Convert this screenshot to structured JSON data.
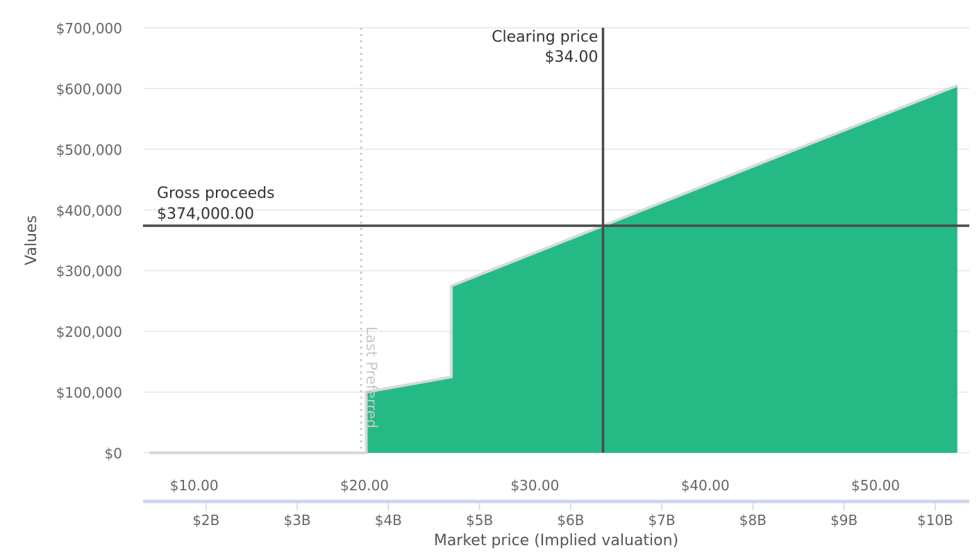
{
  "chart_data": {
    "type": "area",
    "title": "",
    "ylabel": "Values",
    "xlabel": "Market price (Implied valuation)",
    "ylim": [
      0,
      700000
    ],
    "yticks": [
      {
        "value": 0,
        "label": "$0"
      },
      {
        "value": 100000,
        "label": "$100,000"
      },
      {
        "value": 200000,
        "label": "$200,000"
      },
      {
        "value": 300000,
        "label": "$300,000"
      },
      {
        "value": 400000,
        "label": "$400,000"
      },
      {
        "value": 500000,
        "label": "$500,000"
      },
      {
        "value": 600000,
        "label": "$600,000"
      },
      {
        "value": 700000,
        "label": "$700,000"
      }
    ],
    "xlim": [
      7,
      55.5
    ],
    "xticks_price": [
      {
        "value": 10,
        "label": "$10.00"
      },
      {
        "value": 20,
        "label": "$20.00"
      },
      {
        "value": 30,
        "label": "$30.00"
      },
      {
        "value": 40,
        "label": "$40.00"
      },
      {
        "value": 50,
        "label": "$50.00"
      }
    ],
    "xticks_valuation": [
      {
        "value": 10.7,
        "label": "$2B"
      },
      {
        "value": 16.05,
        "label": "$3B"
      },
      {
        "value": 21.4,
        "label": "$4B"
      },
      {
        "value": 26.75,
        "label": "$5B"
      },
      {
        "value": 32.1,
        "label": "$6B"
      },
      {
        "value": 37.45,
        "label": "$7B"
      },
      {
        "value": 42.8,
        "label": "$8B"
      },
      {
        "value": 48.15,
        "label": "$9B"
      },
      {
        "value": 53.5,
        "label": "$10B"
      }
    ],
    "series": [
      {
        "values": [
          {
            "x": 7.4,
            "y": 0
          },
          {
            "x": 19.9,
            "y": 0
          },
          {
            "x": 20.1,
            "y": 0
          },
          {
            "x": 20.1,
            "y": 100000
          },
          {
            "x": 25.1,
            "y": 125000
          },
          {
            "x": 25.1,
            "y": 275000
          },
          {
            "x": 34.0,
            "y": 374000
          },
          {
            "x": 54.8,
            "y": 605000
          }
        ],
        "fill_color": "#25ba85",
        "line_color": "#d9d9d9"
      }
    ],
    "annotations": {
      "last_preferred": {
        "x": 19.8,
        "label": "Last Preferred"
      },
      "clearing_price": {
        "x": 34.0,
        "title": "Clearing price",
        "value_label": "$34.00"
      },
      "gross_proceeds": {
        "y": 374000,
        "title": "Gross proceeds",
        "value_label": "$374,000.00"
      }
    },
    "grid": true,
    "legend": "none",
    "colors": {
      "grid": "#e6e6e6",
      "axis_text": "#666666",
      "annotation_line": "#4a4a4a",
      "last_preferred_line": "#cccccc",
      "navigator_bar": "#ccd6eb"
    }
  }
}
